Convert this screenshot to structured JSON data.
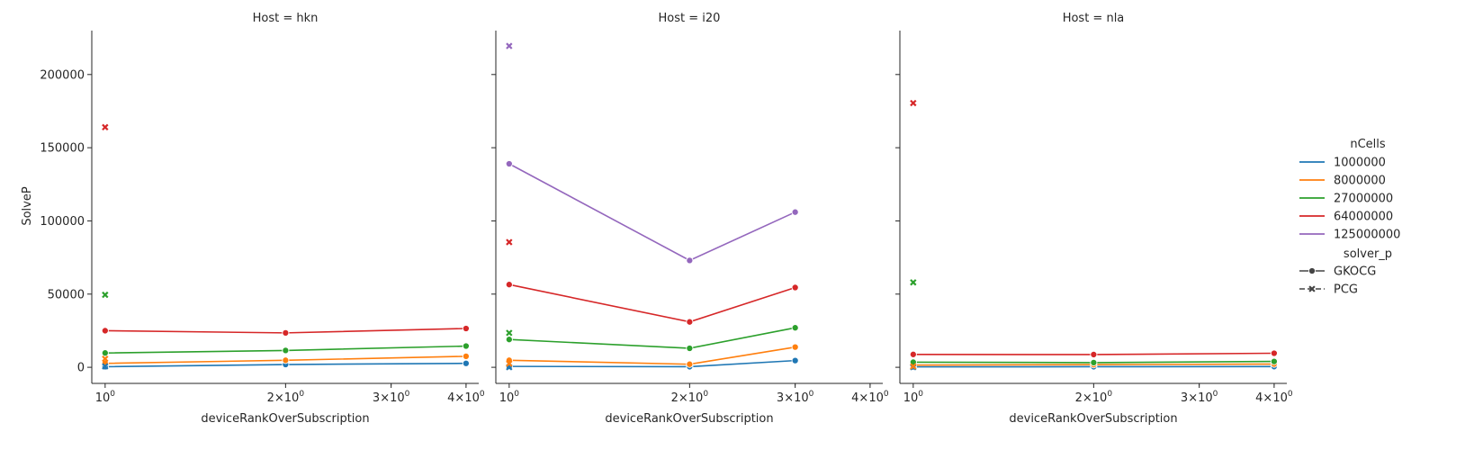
{
  "chart_data": {
    "type": "line",
    "xlabel": "deviceRankOverSubscription",
    "ylabel": "SolveP",
    "xscale": "log",
    "xlim": [
      0.95,
      4.2
    ],
    "ylim": [
      -11000,
      230000
    ],
    "x_ticks": [
      {
        "value": 1,
        "base": "10",
        "exp": "0"
      },
      {
        "value": 2,
        "base": "2×10",
        "exp": "0"
      },
      {
        "value": 3,
        "base": "3×10",
        "exp": "0"
      },
      {
        "value": 4,
        "base": "4×10",
        "exp": "0"
      }
    ],
    "y_ticks": [
      0,
      50000,
      100000,
      150000,
      200000
    ],
    "y_tick_labels": [
      "0",
      "50000",
      "100000",
      "150000",
      "200000"
    ],
    "grid": false,
    "legend_placement": "right",
    "legend": {
      "hue_title": "nCells",
      "style_title": "solver_p",
      "hue_entries": [
        {
          "label": "1000000",
          "color": "#1f77b4"
        },
        {
          "label": "8000000",
          "color": "#ff7f0e"
        },
        {
          "label": "27000000",
          "color": "#2ca02c"
        },
        {
          "label": "64000000",
          "color": "#d62728"
        },
        {
          "label": "125000000",
          "color": "#9467bd"
        }
      ],
      "style_entries": [
        {
          "label": "GKOCG",
          "marker": "circle",
          "line": "solid"
        },
        {
          "label": "PCG",
          "marker": "x",
          "line": "dashed"
        }
      ]
    },
    "panels": [
      {
        "title": "Host = hkn",
        "series": [
          {
            "ncells": "1000000",
            "solver": "GKOCG",
            "color": "#1f77b4",
            "x": [
              1,
              2,
              4
            ],
            "y": [
              400,
              1900,
              2700
            ]
          },
          {
            "ncells": "8000000",
            "solver": "GKOCG",
            "color": "#ff7f0e",
            "x": [
              1,
              2,
              4
            ],
            "y": [
              2700,
              4800,
              7500
            ]
          },
          {
            "ncells": "27000000",
            "solver": "GKOCG",
            "color": "#2ca02c",
            "x": [
              1,
              2,
              4
            ],
            "y": [
              9800,
              11500,
              14500
            ]
          },
          {
            "ncells": "64000000",
            "solver": "GKOCG",
            "color": "#d62728",
            "x": [
              1,
              2,
              4
            ],
            "y": [
              25000,
              23500,
              26500
            ]
          },
          {
            "ncells": "1000000",
            "solver": "PCG",
            "color": "#1f77b4",
            "x": [
              1
            ],
            "y": [
              600
            ]
          },
          {
            "ncells": "8000000",
            "solver": "PCG",
            "color": "#ff7f0e",
            "x": [
              1
            ],
            "y": [
              5800
            ]
          },
          {
            "ncells": "27000000",
            "solver": "PCG",
            "color": "#2ca02c",
            "x": [
              1
            ],
            "y": [
              49500
            ]
          },
          {
            "ncells": "64000000",
            "solver": "PCG",
            "color": "#d62728",
            "x": [
              1
            ],
            "y": [
              164000
            ]
          }
        ]
      },
      {
        "title": "Host = i20",
        "series": [
          {
            "ncells": "1000000",
            "solver": "GKOCG",
            "color": "#1f77b4",
            "x": [
              1,
              2,
              3
            ],
            "y": [
              600,
              400,
              4600
            ]
          },
          {
            "ncells": "8000000",
            "solver": "GKOCG",
            "color": "#ff7f0e",
            "x": [
              1,
              2,
              3
            ],
            "y": [
              4800,
              2100,
              13800
            ]
          },
          {
            "ncells": "27000000",
            "solver": "GKOCG",
            "color": "#2ca02c",
            "x": [
              1,
              2,
              3
            ],
            "y": [
              19000,
              13000,
              27000
            ]
          },
          {
            "ncells": "64000000",
            "solver": "GKOCG",
            "color": "#d62728",
            "x": [
              1,
              2,
              3
            ],
            "y": [
              56500,
              31000,
              54500
            ]
          },
          {
            "ncells": "125000000",
            "solver": "GKOCG",
            "color": "#9467bd",
            "x": [
              1,
              2,
              3
            ],
            "y": [
              139000,
              73000,
              106000
            ]
          },
          {
            "ncells": "1000000",
            "solver": "PCG",
            "color": "#1f77b4",
            "x": [
              1
            ],
            "y": [
              100
            ]
          },
          {
            "ncells": "8000000",
            "solver": "PCG",
            "color": "#ff7f0e",
            "x": [
              1
            ],
            "y": [
              2500
            ]
          },
          {
            "ncells": "27000000",
            "solver": "PCG",
            "color": "#2ca02c",
            "x": [
              1
            ],
            "y": [
              23500
            ]
          },
          {
            "ncells": "64000000",
            "solver": "PCG",
            "color": "#d62728",
            "x": [
              1
            ],
            "y": [
              85500
            ]
          },
          {
            "ncells": "125000000",
            "solver": "PCG",
            "color": "#9467bd",
            "x": [
              1
            ],
            "y": [
              219500
            ]
          }
        ]
      },
      {
        "title": "Host = nla",
        "series": [
          {
            "ncells": "1000000",
            "solver": "GKOCG",
            "color": "#1f77b4",
            "x": [
              1,
              2,
              4
            ],
            "y": [
              300,
              400,
              500
            ]
          },
          {
            "ncells": "8000000",
            "solver": "GKOCG",
            "color": "#ff7f0e",
            "x": [
              1,
              2,
              4
            ],
            "y": [
              1500,
              1800,
              2200
            ]
          },
          {
            "ncells": "27000000",
            "solver": "GKOCG",
            "color": "#2ca02c",
            "x": [
              1,
              2,
              4
            ],
            "y": [
              3500,
              3200,
              4000
            ]
          },
          {
            "ncells": "64000000",
            "solver": "GKOCG",
            "color": "#d62728",
            "x": [
              1,
              2,
              4
            ],
            "y": [
              8800,
              8700,
              9600
            ]
          },
          {
            "ncells": "1000000",
            "solver": "PCG",
            "color": "#1f77b4",
            "x": [
              1
            ],
            "y": [
              100
            ]
          },
          {
            "ncells": "8000000",
            "solver": "PCG",
            "color": "#ff7f0e",
            "x": [
              1
            ],
            "y": [
              600
            ]
          },
          {
            "ncells": "27000000",
            "solver": "PCG",
            "color": "#2ca02c",
            "x": [
              1
            ],
            "y": [
              58000
            ]
          },
          {
            "ncells": "64000000",
            "solver": "PCG",
            "color": "#d62728",
            "x": [
              1
            ],
            "y": [
              180500
            ]
          }
        ]
      }
    ]
  }
}
